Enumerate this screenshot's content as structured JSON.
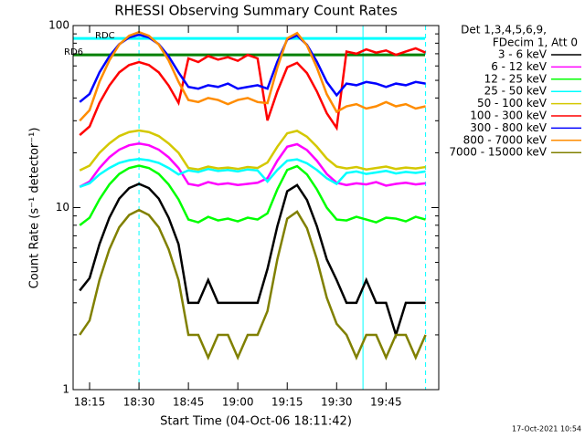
{
  "chart_data": {
    "type": "line",
    "title": "RHESSI Observing Summary Count Rates",
    "xlabel": "Start Time (04-Oct-06 18:11:42)",
    "ylabel": "Count Rate (s⁻¹ detector⁻¹)",
    "legend_header": [
      "Det 1,3,4,5,6,9,",
      "FDecim 1, Att 0"
    ],
    "footer": "17-Oct-2021 10:54",
    "log_scale": true,
    "legend": "right",
    "xlim": [
      "18:10",
      "20:01"
    ],
    "xticks": [
      "18:15",
      "18:30",
      "18:45",
      "19:00",
      "19:15",
      "19:30",
      "19:45"
    ],
    "ylim": [
      1,
      100
    ],
    "yticks": [
      1,
      10,
      100
    ],
    "yminorticks": [
      2,
      3,
      4,
      5,
      6,
      7,
      8,
      9,
      20,
      30,
      40,
      50,
      60,
      70,
      80,
      90
    ],
    "reference_lines": [
      {
        "label": "RD6",
        "value": 69,
        "color": "#008000"
      },
      {
        "label": "RDC",
        "value": 85,
        "color": "#00ffff"
      }
    ],
    "vlines": [
      {
        "x": "18:30",
        "style": "dashed",
        "color": "#00ffff"
      },
      {
        "x": "19:38",
        "style": "solid",
        "color": "#00ffff"
      },
      {
        "x": "19:57",
        "style": "dashed",
        "color": "#00ffff"
      }
    ],
    "x": [
      "18:12",
      "18:15",
      "18:18",
      "18:21",
      "18:24",
      "18:27",
      "18:30",
      "18:33",
      "18:36",
      "18:39",
      "18:42",
      "18:45",
      "18:48",
      "18:51",
      "18:54",
      "18:57",
      "19:00",
      "19:03",
      "19:06",
      "19:09",
      "19:12",
      "19:15",
      "19:18",
      "19:21",
      "19:24",
      "19:27",
      "19:30",
      "19:33",
      "19:36",
      "19:39",
      "19:42",
      "19:45",
      "19:48",
      "19:51",
      "19:54",
      "19:57"
    ],
    "series": [
      {
        "name": "3 - 6 keV",
        "color": "#000000",
        "values": [
          3.5,
          4.1,
          6.3,
          8.8,
          11.2,
          12.8,
          13.5,
          12.8,
          11.2,
          8.8,
          6.3,
          3,
          3,
          4,
          3,
          3,
          3,
          3,
          3,
          4.6,
          7.9,
          12.3,
          13.3,
          11.0,
          7.9,
          5.2,
          4.0,
          3,
          3,
          4,
          3,
          3,
          2,
          3,
          3,
          3
        ]
      },
      {
        "name": "6 - 12 keV",
        "color": "#ff00ff",
        "values": [
          13,
          13.9,
          16.5,
          18.9,
          20.8,
          22.0,
          22.5,
          22.0,
          20.8,
          18.9,
          16.5,
          13.5,
          13.2,
          13.8,
          13.4,
          13.6,
          13.3,
          13.5,
          13.7,
          14.5,
          18.1,
          21.6,
          22.3,
          20.7,
          18.1,
          15.3,
          13.7,
          13.3,
          13.6,
          13.4,
          13.8,
          13.2,
          13.5,
          13.7,
          13.4,
          13.6
        ]
      },
      {
        "name": "12 - 25 keV",
        "color": "#00ff00",
        "values": [
          8,
          8.8,
          11.1,
          13.4,
          15.3,
          16.5,
          17,
          16.5,
          15.3,
          13.4,
          11.1,
          8.6,
          8.3,
          8.9,
          8.5,
          8.7,
          8.4,
          8.8,
          8.6,
          9.3,
          12.6,
          16.1,
          16.9,
          15.2,
          12.6,
          10.0,
          8.6,
          8.5,
          8.9,
          8.6,
          8.3,
          8.8,
          8.7,
          8.4,
          8.9,
          8.6
        ]
      },
      {
        "name": "25 - 50 keV",
        "color": "#00ffff",
        "values": [
          13,
          13.6,
          15.2,
          16.5,
          17.6,
          18.2,
          18.5,
          18.2,
          17.6,
          16.5,
          15.2,
          16,
          15.7,
          16.3,
          15.9,
          16.1,
          15.8,
          16.2,
          16,
          13.9,
          16.1,
          18.1,
          18.4,
          17.5,
          16.1,
          14.5,
          13.5,
          15.5,
          15.8,
          15.3,
          15.6,
          15.9,
          15.4,
          15.7,
          15.5,
          15.8
        ]
      },
      {
        "name": "50 - 100 keV",
        "color": "#d4c800",
        "values": [
          16,
          17.0,
          20.0,
          22.5,
          24.7,
          26.0,
          26.5,
          26.0,
          24.7,
          22.5,
          20.0,
          16.5,
          16.2,
          16.8,
          16.4,
          16.6,
          16.3,
          16.7,
          16.5,
          17.7,
          21.6,
          25.6,
          26.4,
          24.5,
          21.6,
          18.6,
          16.8,
          16.4,
          16.7,
          16.2,
          16.5,
          16.8,
          16.3,
          16.6,
          16.4,
          16.7
        ]
      },
      {
        "name": "100 - 300 keV",
        "color": "#ff0000",
        "values": [
          25,
          27.9,
          37.6,
          46.8,
          55.3,
          60.7,
          63,
          60.7,
          55.3,
          46.8,
          37.6,
          66,
          63,
          68,
          65,
          67,
          64,
          69,
          66,
          30.1,
          43.5,
          59.0,
          62.4,
          54.8,
          43.5,
          33.0,
          27.4,
          72,
          70,
          74,
          71,
          73,
          69,
          72,
          75,
          71
        ]
      },
      {
        "name": "300 - 800 keV",
        "color": "#0000ff",
        "values": [
          38,
          42.1,
          55.3,
          67.8,
          79.0,
          86.0,
          89,
          86.0,
          79.0,
          67.8,
          55.3,
          46,
          45,
          47,
          46,
          48,
          45,
          46,
          47,
          45.0,
          63.3,
          83.8,
          88.2,
          78.3,
          63.3,
          49.0,
          41.4,
          48,
          47,
          49,
          48,
          46,
          48,
          47,
          49,
          48
        ]
      },
      {
        "name": "800 - 7000 keV",
        "color": "#ff8c00",
        "values": [
          30,
          34.3,
          49.1,
          64.3,
          78.6,
          87.9,
          92,
          87.9,
          78.6,
          64.3,
          49.1,
          39,
          38,
          40,
          39,
          37,
          39,
          40,
          38,
          37.5,
          58.7,
          85.0,
          90.9,
          77.7,
          58.7,
          42.0,
          33.6,
          36,
          37,
          35,
          36,
          38,
          36,
          37,
          35,
          36
        ]
      },
      {
        "name": "7000 - 15000 keV",
        "color": "#808000",
        "values": [
          2,
          2.4,
          4.0,
          5.9,
          7.8,
          9.1,
          9.7,
          9.1,
          7.8,
          5.9,
          4.0,
          2,
          2,
          1.5,
          2,
          2,
          1.5,
          2,
          2,
          2.7,
          5.2,
          8.7,
          9.5,
          7.7,
          5.2,
          3.2,
          2.3,
          2,
          1.5,
          2,
          2,
          1.5,
          2,
          2,
          1.5,
          2
        ]
      }
    ]
  }
}
